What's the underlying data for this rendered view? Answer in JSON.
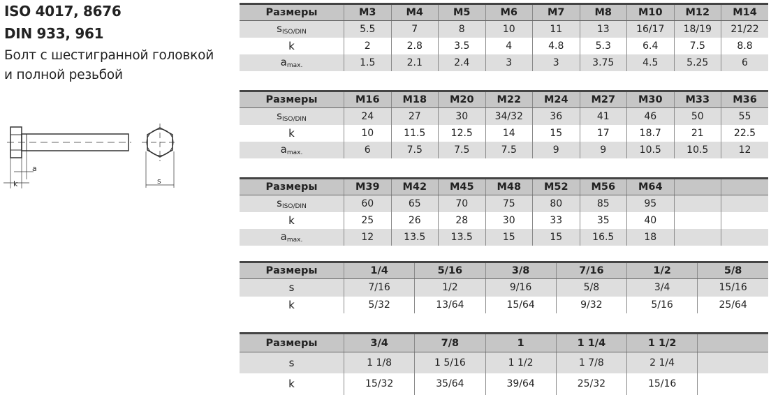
{
  "title": {
    "line1": "ISO 4017, 8676",
    "line2": "DIN 933, 961",
    "desc1": "Болт с шестигранной головкой",
    "desc2": "и полной резьбой"
  },
  "drawing": {
    "label_a": "a",
    "label_k": "k",
    "label_s": "s"
  },
  "tables": [
    {
      "header": [
        "Размеры",
        "M3",
        "M4",
        "M5",
        "M6",
        "M7",
        "M8",
        "M10",
        "M12",
        "M14"
      ],
      "rows": [
        {
          "label": "s",
          "sub": "ISO/DIN",
          "values": [
            "5.5",
            "7",
            "8",
            "10",
            "11",
            "13",
            "16/17",
            "18/19",
            "21/22"
          ]
        },
        {
          "label": "k",
          "sub": "",
          "values": [
            "2",
            "2.8",
            "3.5",
            "4",
            "4.8",
            "5.3",
            "6.4",
            "7.5",
            "8.8"
          ]
        },
        {
          "label": "a",
          "sub": "max.",
          "values": [
            "1.5",
            "2.1",
            "2.4",
            "3",
            "3",
            "3.75",
            "4.5",
            "5.25",
            "6"
          ]
        }
      ]
    },
    {
      "header": [
        "Размеры",
        "M16",
        "M18",
        "M20",
        "M22",
        "M24",
        "M27",
        "M30",
        "M33",
        "M36"
      ],
      "rows": [
        {
          "label": "s",
          "sub": "ISO/DIN",
          "values": [
            "24",
            "27",
            "30",
            "34/32",
            "36",
            "41",
            "46",
            "50",
            "55"
          ]
        },
        {
          "label": "k",
          "sub": "",
          "values": [
            "10",
            "11.5",
            "12.5",
            "14",
            "15",
            "17",
            "18.7",
            "21",
            "22.5"
          ]
        },
        {
          "label": "a",
          "sub": "max.",
          "values": [
            "6",
            "7.5",
            "7.5",
            "7.5",
            "9",
            "9",
            "10.5",
            "10.5",
            "12"
          ]
        }
      ]
    },
    {
      "header": [
        "Размеры",
        "M39",
        "M42",
        "M45",
        "M48",
        "M52",
        "M56",
        "M64",
        "",
        ""
      ],
      "rows": [
        {
          "label": "s",
          "sub": "ISO/DIN",
          "values": [
            "60",
            "65",
            "70",
            "75",
            "80",
            "85",
            "95",
            "",
            ""
          ]
        },
        {
          "label": "k",
          "sub": "",
          "values": [
            "25",
            "26",
            "28",
            "30",
            "33",
            "35",
            "40",
            "",
            ""
          ]
        },
        {
          "label": "a",
          "sub": "max.",
          "values": [
            "12",
            "13.5",
            "13.5",
            "15",
            "15",
            "16.5",
            "18",
            "",
            ""
          ]
        }
      ]
    },
    {
      "header": [
        "Размеры",
        "1/4",
        "5/16",
        "3/8",
        "7/16",
        "1/2",
        "5/8"
      ],
      "rows": [
        {
          "label": "s",
          "sub": "",
          "values": [
            "7/16",
            "1/2",
            "9/16",
            "5/8",
            "3/4",
            "15/16"
          ]
        },
        {
          "label": "k",
          "sub": "",
          "values": [
            "5/32",
            "13/64",
            "15/64",
            "9/32",
            "5/16",
            "25/64"
          ]
        }
      ]
    },
    {
      "header": [
        "Размеры",
        "3/4",
        "7/8",
        "1",
        "1 1/4",
        "1 1/2",
        ""
      ],
      "rows": [
        {
          "label": "s",
          "sub": "",
          "values": [
            "1 1/8",
            "1 5/16",
            "1 1/2",
            "1 7/8",
            "2 1/4",
            ""
          ]
        },
        {
          "label": "k",
          "sub": "",
          "values": [
            "15/32",
            "35/64",
            "39/64",
            "25/32",
            "15/16",
            ""
          ]
        }
      ]
    }
  ]
}
